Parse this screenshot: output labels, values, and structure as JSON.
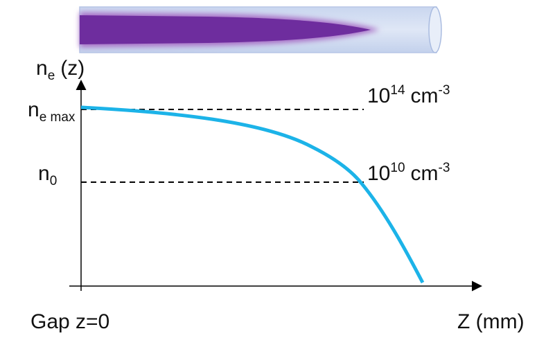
{
  "y_axis_label": {
    "base": "n",
    "sub": "e",
    "rest": "(z)"
  },
  "levels": [
    {
      "symbol": {
        "base": "n",
        "sub": "e max"
      },
      "value": {
        "base": "10",
        "exp": "14",
        "unit": "cm",
        "unit_exp": "-3"
      }
    },
    {
      "symbol": {
        "base": "n",
        "sub": "0"
      },
      "value": {
        "base": "10",
        "exp": "10",
        "unit": "cm",
        "unit_exp": "-3"
      }
    }
  ],
  "x_axis_origin_label": "Gap z=0",
  "x_axis_label": "Z (mm)"
}
